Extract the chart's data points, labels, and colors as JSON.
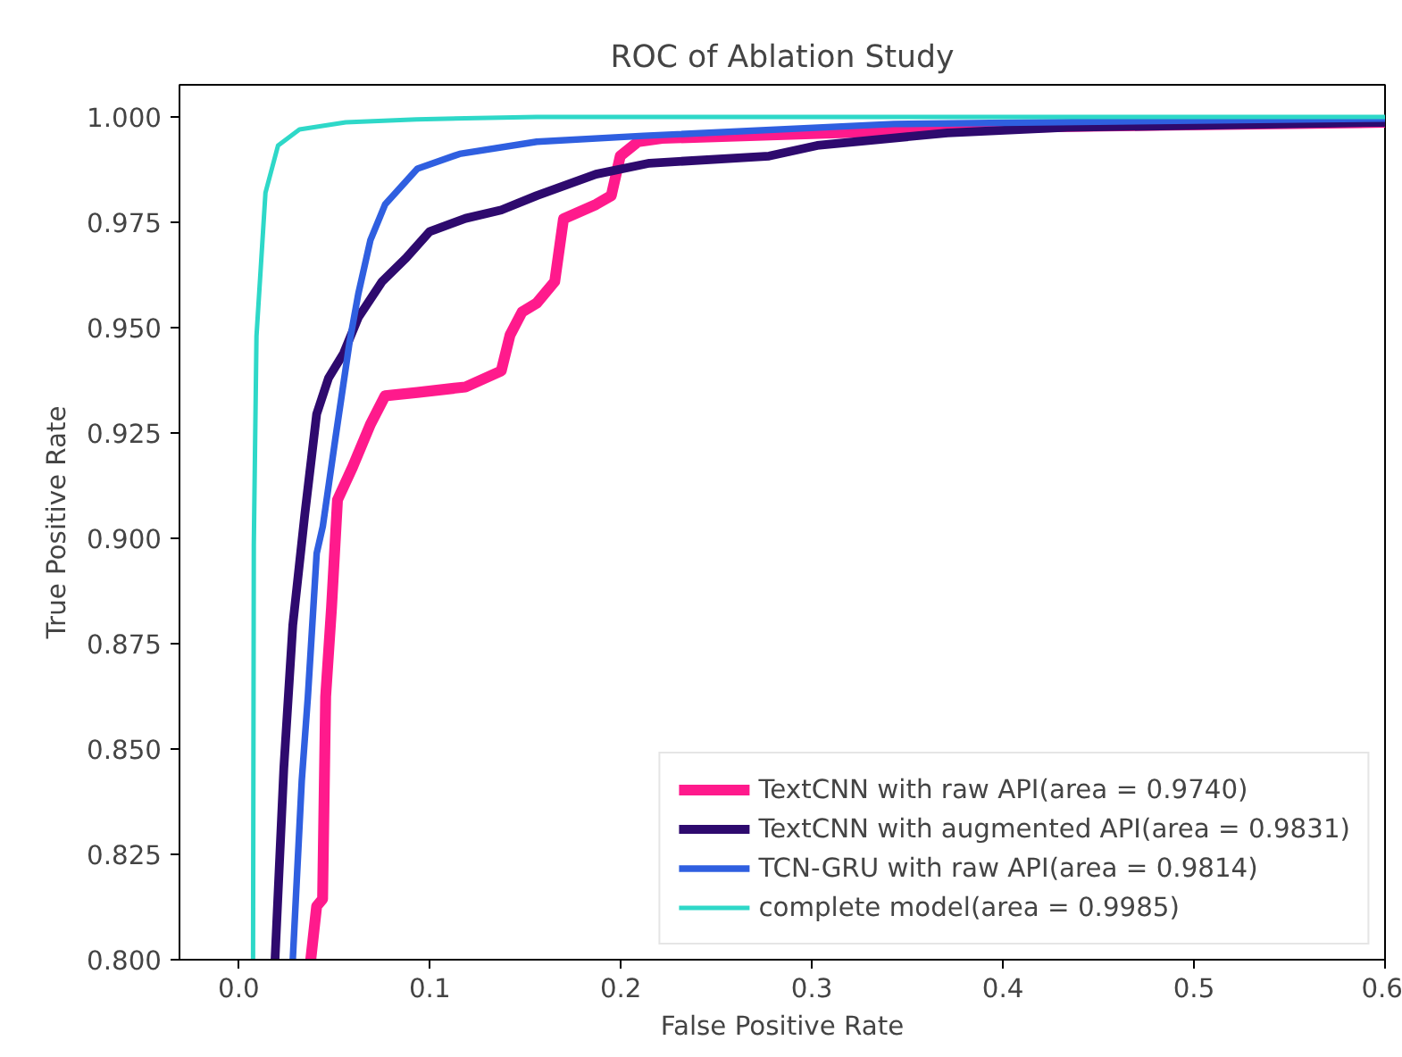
{
  "chart_data": {
    "type": "line",
    "title": "ROC of Ablation Study",
    "xlabel": "False Positive Rate",
    "ylabel": "True Positive Rate",
    "xlim": [
      -0.031,
      0.6
    ],
    "ylim": [
      0.8,
      1.0076
    ],
    "xticks": [
      {
        "value": 0,
        "label": "0.0"
      },
      {
        "value": 0.1,
        "label": "0.1"
      },
      {
        "value": 0.2,
        "label": "0.2"
      },
      {
        "value": 0.3,
        "label": "0.3"
      },
      {
        "value": 0.4,
        "label": "0.4"
      },
      {
        "value": 0.5,
        "label": "0.5"
      },
      {
        "value": 0.6,
        "label": "0.6"
      }
    ],
    "yticks": [
      {
        "value": 0.8,
        "label": "0.800"
      },
      {
        "value": 0.825,
        "label": "0.825"
      },
      {
        "value": 0.85,
        "label": "0.850"
      },
      {
        "value": 0.875,
        "label": "0.875"
      },
      {
        "value": 0.9,
        "label": "0.900"
      },
      {
        "value": 0.925,
        "label": "0.925"
      },
      {
        "value": 0.95,
        "label": "0.950"
      },
      {
        "value": 0.975,
        "label": "0.975"
      },
      {
        "value": 1.0,
        "label": "1.000"
      }
    ],
    "grid": false,
    "legend": "bottom right",
    "series": [
      {
        "name": "TextCNN with raw API(area = 0.9740)",
        "color": "#ff1a8c",
        "x": [
          0.0377,
          0.0408,
          0.0439,
          0.0455,
          0.0486,
          0.0517,
          0.0595,
          0.0689,
          0.0766,
          0.0935,
          0.1187,
          0.1374,
          0.142,
          0.1483,
          0.156,
          0.1654,
          0.17,
          0.187,
          0.195,
          0.1997,
          0.209,
          0.2215,
          0.34,
          0.402,
          0.6
        ],
        "values": [
          0.8,
          0.8127,
          0.8144,
          0.8624,
          0.8837,
          0.9091,
          0.9168,
          0.927,
          0.9338,
          0.9346,
          0.9359,
          0.9397,
          0.9482,
          0.9537,
          0.9558,
          0.9609,
          0.9758,
          0.9792,
          0.9813,
          0.9907,
          0.9941,
          0.9949,
          0.9966,
          0.9975,
          0.9987
        ]
      },
      {
        "name": "TextCNN with augmented API(area = 0.9831)",
        "color": "#2e0a6e",
        "x": [
          0.019,
          0.0236,
          0.0283,
          0.0346,
          0.0408,
          0.047,
          0.0549,
          0.0626,
          0.075,
          0.0876,
          0.1,
          0.1187,
          0.1374,
          0.156,
          0.187,
          0.215,
          0.2776,
          0.3028,
          0.371,
          0.4336,
          0.6
        ],
        "values": [
          0.8,
          0.8454,
          0.8794,
          0.9057,
          0.9295,
          0.938,
          0.9439,
          0.9524,
          0.9609,
          0.9665,
          0.9728,
          0.9759,
          0.9779,
          0.9813,
          0.9864,
          0.989,
          0.9907,
          0.9932,
          0.9962,
          0.9975,
          0.9987
        ]
      },
      {
        "name": "TCN-GRU with raw API(area = 0.9814)",
        "color": "#2f5fe0",
        "x": [
          0.0283,
          0.033,
          0.0362,
          0.0408,
          0.044,
          0.0507,
          0.058,
          0.0626,
          0.0689,
          0.0766,
          0.0935,
          0.1156,
          0.156,
          0.212,
          0.343,
          0.6
        ],
        "values": [
          0.8,
          0.8425,
          0.8624,
          0.8964,
          0.9028,
          0.924,
          0.9465,
          0.958,
          0.9707,
          0.9792,
          0.9877,
          0.9912,
          0.9941,
          0.9955,
          0.9983,
          0.9996
        ]
      },
      {
        "name": "complete model(area = 0.9985)",
        "color": "#2ed8c8",
        "x": [
          0.0075,
          0.0079,
          0.0093,
          0.014,
          0.0206,
          0.0318,
          0.056,
          0.093,
          0.156,
          0.6
        ],
        "values": [
          0.8,
          0.8985,
          0.948,
          0.982,
          0.9932,
          0.997,
          0.9987,
          0.9994,
          1.0,
          1.0
        ]
      }
    ]
  }
}
